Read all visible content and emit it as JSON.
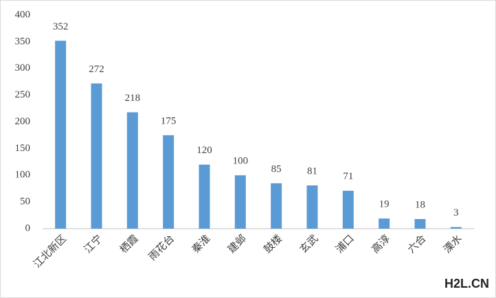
{
  "chart_data": {
    "type": "bar",
    "categories": [
      "江北新区",
      "江宁",
      "栖霞",
      "雨花台",
      "秦淮",
      "建邺",
      "鼓楼",
      "玄武",
      "浦口",
      "高淳",
      "六合",
      "溧水"
    ],
    "values": [
      352,
      272,
      218,
      175,
      120,
      100,
      85,
      81,
      71,
      19,
      18,
      3
    ],
    "color": "#5b9bd5",
    "ylim": [
      0,
      400
    ],
    "yticks": [
      0,
      50,
      100,
      150,
      200,
      250,
      300,
      350,
      400
    ],
    "grid": false
  },
  "watermark": "H2L.CN"
}
